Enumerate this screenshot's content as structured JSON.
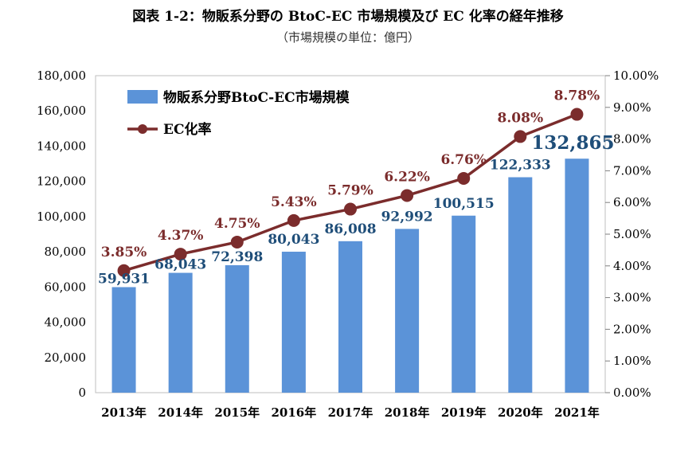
{
  "title": "図表 1-2：物販系分野の BtoC-EC 市場規模及び EC 化率の経年推移",
  "subtitle": "（市場規模の単位：億円）",
  "colors": {
    "bar": "#5b93d8",
    "line": "#7b2c2c",
    "bar_label": "#1f4e79"
  },
  "chart_data": {
    "type": "bar",
    "categories": [
      "2013年",
      "2014年",
      "2015年",
      "2016年",
      "2017年",
      "2018年",
      "2019年",
      "2020年",
      "2021年"
    ],
    "series": [
      {
        "name": "物販系分野BtoC-EC市場規模",
        "type": "bar",
        "axis": "left",
        "values": [
          59931,
          68043,
          72398,
          80043,
          86008,
          92992,
          100515,
          122333,
          132865
        ],
        "labels": [
          "59,931",
          "68,043",
          "72,398",
          "80,043",
          "86,008",
          "92,992",
          "100,515",
          "122,333",
          "132,865"
        ]
      },
      {
        "name": "EC化率",
        "type": "line",
        "axis": "right",
        "values": [
          3.85,
          4.37,
          4.75,
          5.43,
          5.79,
          6.22,
          6.76,
          8.08,
          8.78
        ],
        "labels": [
          "3.85%",
          "4.37%",
          "4.75%",
          "5.43%",
          "5.79%",
          "6.22%",
          "6.76%",
          "8.08%",
          "8.78%"
        ]
      }
    ],
    "y_left": {
      "ylim": [
        0,
        180000
      ],
      "ticks": [
        "0",
        "20,000",
        "40,000",
        "60,000",
        "80,000",
        "100,000",
        "120,000",
        "140,000",
        "160,000",
        "180,000"
      ]
    },
    "y_right": {
      "ylim": [
        0,
        10
      ],
      "ticks": [
        "0.00%",
        "1.00%",
        "2.00%",
        "3.00%",
        "4.00%",
        "5.00%",
        "6.00%",
        "7.00%",
        "8.00%",
        "9.00%",
        "10.00%"
      ]
    },
    "grid": false,
    "legend": "top-left"
  }
}
